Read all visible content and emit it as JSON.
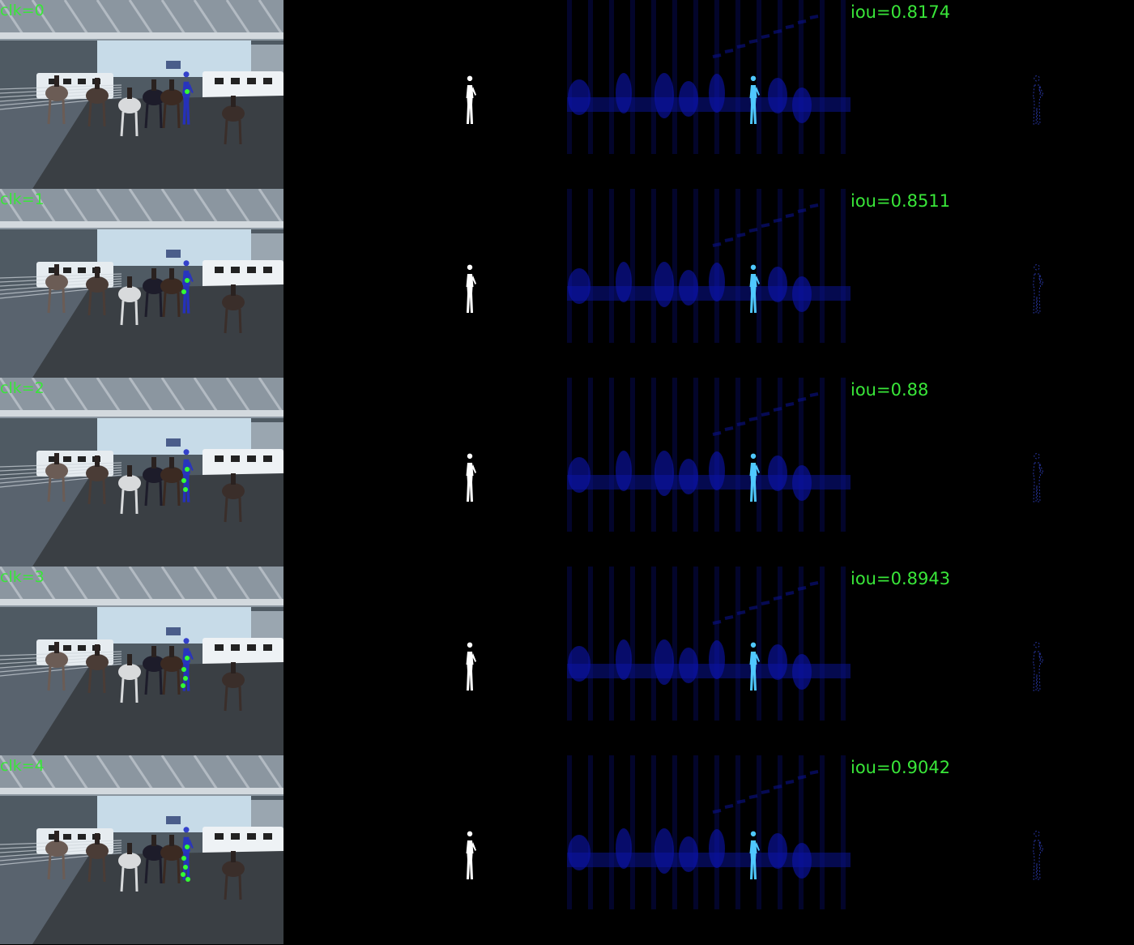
{
  "rows": [
    {
      "click_label": "clk=0",
      "iou_label": "iou=0.8174",
      "clicks": 1
    },
    {
      "click_label": "clk=1",
      "iou_label": "iou=0.8511",
      "clicks": 2
    },
    {
      "click_label": "clk=2",
      "iou_label": "iou=0.88",
      "clicks": 3
    },
    {
      "click_label": "clk=3",
      "iou_label": "iou=0.8943",
      "clicks": 4
    },
    {
      "click_label": "clk=4",
      "iou_label": "iou=0.9042",
      "clicks": 5
    }
  ],
  "colors": {
    "label_green": "#39e639",
    "click_dot": "#33ff33",
    "mask_white": "#ffffff",
    "heat_blue": "#0a14b4",
    "heat_cyan": "#4fc8ff"
  }
}
